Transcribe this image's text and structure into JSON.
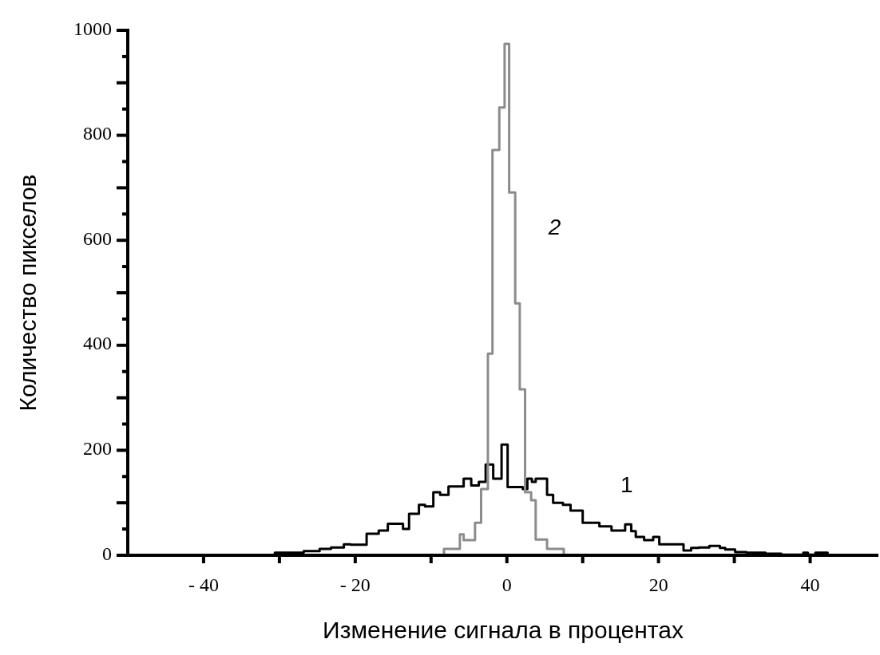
{
  "chart_data": {
    "type": "step",
    "xlabel": "Изменение сигнала в процентах",
    "ylabel": "Количество пикселов",
    "xlim": [
      -50,
      49
    ],
    "ylim": [
      0,
      1000
    ],
    "xticks": [
      {
        "value": -40,
        "label": "- 40"
      },
      {
        "value": -30,
        "label": null
      },
      {
        "value": -20,
        "label": "- 20"
      },
      {
        "value": -10,
        "label": null
      },
      0,
      {
        "value": 10,
        "label": null
      },
      20,
      {
        "value": 30,
        "label": null
      },
      40
    ],
    "yticks": [
      0,
      {
        "value": 50,
        "label": null
      },
      {
        "value": 100,
        "label": null
      },
      {
        "value": 150,
        "label": null
      },
      200,
      {
        "value": 250,
        "label": null
      },
      {
        "value": 300,
        "label": null
      },
      {
        "value": 350,
        "label": null
      },
      400,
      {
        "value": 450,
        "label": null
      },
      {
        "value": 500,
        "label": null
      },
      {
        "value": 550,
        "label": null
      },
      600,
      {
        "value": 650,
        "label": null
      },
      {
        "value": 700,
        "label": null
      },
      {
        "value": 750,
        "label": null
      },
      800,
      {
        "value": 850,
        "label": null
      },
      {
        "value": 900,
        "label": null
      },
      {
        "value": 950,
        "label": null
      },
      1000
    ],
    "series": [
      {
        "name": "1",
        "color": "#000000",
        "x": [
          -30.6,
          -30.6,
          -26.8,
          -24.7,
          -23.2,
          -21.5,
          -20.6,
          -18.5,
          -16.9,
          -15.7,
          -13.7,
          -12.9,
          -11.6,
          -10.8,
          -9.7,
          -8.8,
          -7.7,
          -5.7,
          -4.7,
          -3.7,
          -2.8,
          -1.8,
          -0.7,
          0.1,
          2.1,
          2.7,
          3.3,
          3.8,
          5.3,
          6.1,
          7.4,
          8.4,
          10.0,
          12.2,
          13.8,
          15.6,
          16.4,
          17.0,
          18.1,
          19.3,
          20.1,
          23.3,
          24.3,
          25.3,
          26.7,
          28.1,
          28.8,
          30.1,
          31.6,
          34.1,
          36.2,
          39.1,
          39.7,
          40.7,
          42.3
        ],
        "values": [
          0,
          5,
          8,
          12,
          15,
          21,
          20,
          41,
          47,
          60,
          50,
          79,
          96,
          93,
          120,
          115,
          131,
          146,
          133,
          140,
          173,
          146,
          211,
          130,
          126,
          146,
          140,
          146,
          115,
          100,
          96,
          85,
          62,
          55,
          47,
          59,
          46,
          35,
          29,
          35,
          21,
          9,
          14,
          15,
          18,
          14,
          11,
          6,
          5,
          3,
          1,
          5,
          1,
          5,
          0
        ]
      },
      {
        "name": "2",
        "color": "#8c8c8c",
        "x": [
          -8.3,
          -8.3,
          -6.2,
          -5.7,
          -4.2,
          -3.4,
          -2.5,
          -1.9,
          -1.0,
          -0.3,
          0.3,
          1.1,
          1.7,
          2.4,
          3.2,
          3.8,
          5.3,
          7.5
        ],
        "values": [
          0,
          12,
          40,
          29,
          62,
          126,
          384,
          772,
          853,
          974,
          691,
          480,
          316,
          120,
          105,
          30,
          12,
          0
        ]
      }
    ]
  }
}
